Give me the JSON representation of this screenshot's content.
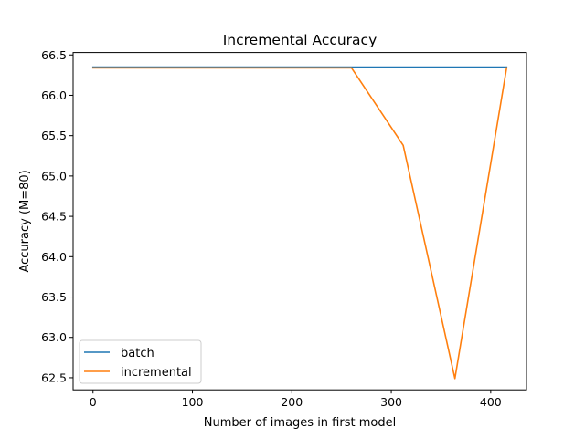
{
  "chart_data": {
    "type": "line",
    "title": "Incremental Accuracy",
    "xlabel": "Number of images in first model",
    "ylabel": "Accuracy (M=80)",
    "xlim": [
      -20,
      436
    ],
    "ylim": [
      62.35,
      66.53
    ],
    "xticks": [
      0,
      100,
      200,
      300,
      400
    ],
    "yticks": [
      62.5,
      63.0,
      63.5,
      64.0,
      64.5,
      65.0,
      65.5,
      66.0,
      66.5
    ],
    "ytick_labels": [
      "62.5",
      "63.0",
      "63.5",
      "64.0",
      "64.5",
      "65.0",
      "65.5",
      "66.0",
      "66.5"
    ],
    "grid": false,
    "legend_position": "lower-left",
    "series": [
      {
        "name": "batch",
        "color": "#1f77b4",
        "x": [
          0,
          52,
          104,
          156,
          208,
          260,
          312,
          364,
          416
        ],
        "y": [
          66.35,
          66.35,
          66.35,
          66.35,
          66.35,
          66.35,
          66.35,
          66.35,
          66.35
        ]
      },
      {
        "name": "incremental",
        "color": "#ff7f0e",
        "x": [
          0,
          52,
          104,
          156,
          208,
          260,
          312,
          364,
          416
        ],
        "y": [
          66.34,
          66.34,
          66.34,
          66.34,
          66.34,
          66.34,
          65.38,
          62.49,
          66.34
        ]
      }
    ]
  }
}
